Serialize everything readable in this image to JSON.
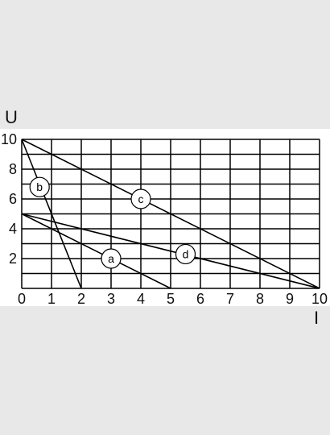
{
  "chart_data": {
    "type": "line",
    "title": "",
    "xlabel": "I",
    "ylabel": "U",
    "xlim": [
      0,
      10
    ],
    "ylim": [
      0,
      10
    ],
    "x_ticks": [
      0,
      1,
      2,
      3,
      4,
      5,
      6,
      7,
      8,
      9,
      10
    ],
    "y_ticks": [
      2,
      4,
      6,
      8,
      10
    ],
    "grid": true,
    "series": [
      {
        "name": "a",
        "x": [
          0,
          5
        ],
        "y": [
          5,
          0
        ],
        "label_at": [
          3,
          2
        ]
      },
      {
        "name": "b",
        "x": [
          0,
          2
        ],
        "y": [
          10,
          0
        ],
        "label_at": [
          0.6,
          6.8
        ]
      },
      {
        "name": "c",
        "x": [
          0,
          10
        ],
        "y": [
          10,
          0
        ],
        "label_at": [
          4,
          6
        ]
      },
      {
        "name": "d",
        "x": [
          0,
          10
        ],
        "y": [
          5,
          0
        ],
        "label_at": [
          5.5,
          2.3
        ]
      }
    ]
  }
}
